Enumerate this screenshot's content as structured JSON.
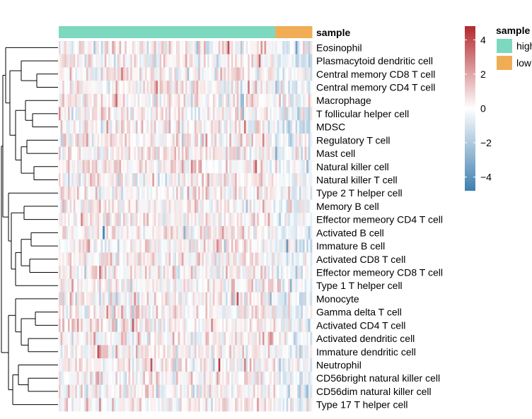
{
  "chart_data": {
    "type": "heatmap",
    "annotation_title": "sample",
    "annotation_groups": [
      {
        "label": "high",
        "color": "#7DD8C0",
        "count": 118
      },
      {
        "label": "low",
        "color": "#F0AD55",
        "count": 20
      }
    ],
    "rows": [
      "Eosinophil",
      "Plasmacytoid dendritic cell",
      "Central memory CD8 T cell",
      "Central memory CD4 T cell",
      "Macrophage",
      "T follicular helper cell",
      "MDSC",
      "Regulatory T cell",
      "Mast cell",
      "Natural killer cell",
      "Natural killer T cell",
      "Type 2 T helper cell",
      "Memory B cell",
      "Effector memeory CD4 T cell",
      "Activated B cell",
      "Immature  B cell",
      "Activated CD8 T cell",
      "Effector memeory CD8 T cell",
      "Type 1 T helper cell",
      "Monocyte",
      "Gamma delta T cell",
      "Activated CD4 T cell",
      "Activated dendritic cell",
      "Immature dendritic cell",
      "Neutrophil",
      "CD56bright natural killer cell",
      "CD56dim natural killer cell",
      "Type 17 T helper cell"
    ],
    "color_scale": {
      "min": -4.8,
      "max": 4.8,
      "low_color": "#3E7FB0",
      "mid_color": "#FFFFFF",
      "high_color": "#B2292E",
      "ticks": [
        4,
        2,
        0,
        -2,
        -4
      ],
      "tick_labels": [
        "4",
        "2",
        "0",
        "−2",
        "−4"
      ]
    },
    "dendrogram": "row clustering tree on the left (approximate)"
  }
}
